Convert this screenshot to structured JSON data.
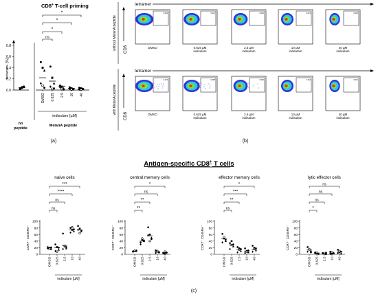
{
  "panel_a": {
    "title": "CD8",
    "title_sup": "+",
    "title_rest": " T-cell priming",
    "ylabel": "tetramer+ [%]",
    "yticks": [
      "0.0",
      "0.2",
      "0.4",
      "0.6",
      "0.8"
    ],
    "xticks": [
      "DMSO",
      "0.625",
      "2.5",
      "10",
      "40"
    ],
    "treatment_label": "indisulam [µM]",
    "group_no_peptide_1": "no",
    "group_no_peptide_2": "peptide",
    "group_peptide": "MelanA peptide",
    "ns_label": "ns",
    "star": "*",
    "caption": "(a)"
  },
  "panel_b": {
    "tetramer_label": "tetramer",
    "cd8_label": "CD8",
    "row1_side": "without MelanA peptide",
    "row2_side": "with MelanA peptide",
    "conditions": [
      "DMSO",
      "0.625 µM indisulam",
      "2.5 µM indisulam",
      "10 µM indisulam",
      "40 µM indisulam"
    ],
    "row1_values": [
      "0.032",
      "0.021",
      "0.026",
      "0.013",
      "0.018"
    ],
    "row2_values": [
      "0.272",
      "0.088",
      "0.090",
      "0.011",
      "0.012"
    ],
    "caption": "(b)"
  },
  "panel_c": {
    "heading": "Antigen-specific CD8",
    "heading_sup": "+",
    "heading_rest": " T cells",
    "ylabel": "CCR7⁺ CD45RA⁺",
    "yticks": [
      "0",
      "20",
      "40",
      "60",
      "80",
      "100"
    ],
    "xticks": [
      "DMSO",
      "0.625",
      "2.5",
      "10",
      "40"
    ],
    "xlabel": "indisulam [µM]",
    "caption": "(c)",
    "subplots": [
      {
        "title": "naive cells",
        "sig": [
          "***",
          "****",
          "ns",
          "ns"
        ]
      },
      {
        "title": "central memory cells",
        "sig": [
          "*",
          "ns",
          "**",
          "**"
        ]
      },
      {
        "title": "effector memory cells",
        "sig": [
          "*",
          "***",
          "**",
          "ns"
        ]
      },
      {
        "title": "lytic effector cells",
        "sig": [
          "ns",
          "ns",
          "ns",
          "*"
        ]
      }
    ]
  },
  "chart_data": [
    {
      "type": "scatter",
      "title": "CD8+ T-cell priming",
      "ylabel": "tetramer+ [%]",
      "ylim": [
        0,
        0.8
      ],
      "categories": [
        "no peptide",
        "DMSO",
        "0.625",
        "2.5",
        "10",
        "40"
      ],
      "series": [
        {
          "values": [
            [
              0.03,
              0.05,
              0.06,
              0.02,
              0.04
            ],
            [
              0.5,
              0.4,
              0.35,
              0.12,
              0.08,
              0.04
            ],
            [
              0.42,
              0.22,
              0.12,
              0.06,
              0.02,
              0.03
            ],
            [
              0.08,
              0.06,
              0.03,
              0.05,
              0.02,
              0.01
            ],
            [
              0.05,
              0.03,
              0.02,
              0.02,
              0.01,
              0.01
            ],
            [
              0.04,
              0.03,
              0.02,
              0.01,
              0.01,
              0.02
            ]
          ]
        },
        {
          "values": [
            0.04,
            0.22,
            0.16,
            0.07,
            0.03,
            0.02
          ]
        }
      ]
    },
    {
      "type": "scatter",
      "title": "naive cells",
      "ylim": [
        0,
        100
      ],
      "categories": [
        "DMSO",
        "0.625",
        "2.5",
        "10",
        "40"
      ],
      "series": [
        {
          "values": [
            [
              18,
              20,
              16,
              22,
              17,
              21
            ],
            [
              30,
              22,
              14,
              10,
              8,
              20
            ],
            [
              63,
              24,
              18,
              16,
              26,
              22
            ],
            [
              80,
              74,
              70,
              66,
              82,
              76
            ],
            [
              86,
              78,
              70,
              74,
              64,
              72
            ]
          ]
        },
        {
          "values": [
            19,
            20,
            27,
            75,
            74
          ]
        }
      ]
    },
    {
      "type": "scatter",
      "title": "central memory cells",
      "ylim": [
        0,
        100
      ],
      "categories": [
        "DMSO",
        "0.625",
        "2.5",
        "10",
        "40"
      ],
      "series": [
        {
          "values": [
            [
              8,
              10,
              12,
              9,
              11,
              10
            ],
            [
              36,
              44,
              40,
              30,
              48,
              42
            ],
            [
              82,
              60,
              50,
              58,
              40,
              46
            ],
            [
              12,
              8,
              6,
              4,
              10,
              6
            ],
            [
              4,
              2,
              6,
              3,
              8,
              5
            ]
          ]
        },
        {
          "values": [
            10,
            40,
            56,
            8,
            5
          ]
        }
      ]
    },
    {
      "type": "scatter",
      "title": "effector memory cells",
      "ylim": [
        0,
        100
      ],
      "categories": [
        "DMSO",
        "0.625",
        "2.5",
        "10",
        "40"
      ],
      "series": [
        {
          "values": [
            [
              62,
              48,
              40,
              36,
              52,
              44
            ],
            [
              34,
              40,
              24,
              16,
              28,
              30
            ],
            [
              22,
              18,
              10,
              6,
              14,
              16
            ],
            [
              18,
              10,
              6,
              4,
              8,
              12
            ],
            [
              26,
              20,
              12,
              8,
              16,
              18
            ]
          ]
        },
        {
          "values": [
            47,
            29,
            14,
            10,
            16
          ]
        }
      ]
    },
    {
      "type": "scatter",
      "title": "lytic effector cells",
      "ylim": [
        0,
        100
      ],
      "categories": [
        "DMSO",
        "0.625",
        "2.5",
        "10",
        "40"
      ],
      "series": [
        {
          "values": [
            [
              22,
              14,
              10,
              8,
              16,
              6
            ],
            [
              6,
              4,
              2,
              3,
              5,
              1
            ],
            [
              4,
              2,
              1,
              3,
              2,
              5
            ],
            [
              8,
              2,
              4,
              1,
              6,
              3
            ],
            [
              14,
              6,
              2,
              4,
              10,
              8
            ]
          ]
        },
        {
          "values": [
            13,
            4,
            3,
            4,
            7
          ]
        }
      ]
    }
  ]
}
